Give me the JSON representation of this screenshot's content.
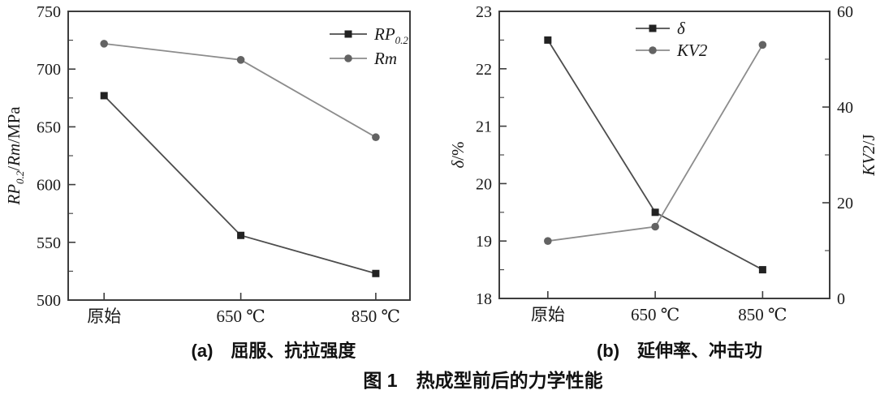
{
  "figure": {
    "caption": "图 1　热成型前后的力学性能",
    "subtitles": {
      "a": "(a)　屈服、抗拉强度",
      "b": "(b)　延伸率、冲击功"
    }
  },
  "colors": {
    "axis": "#3d3d3d",
    "text": "#1a1a1a",
    "series_dark_marker": "#222222",
    "series_dark_line": "#4d4d4d",
    "series_gray_marker": "#636363",
    "series_gray_line": "#8c8c8c"
  },
  "chart_data": [
    {
      "id": "a",
      "type": "line",
      "title": "(a) 屈服、抗拉强度",
      "categories": [
        "原始",
        "650 ℃",
        "850 ℃"
      ],
      "xlabel": "",
      "ylabel": "RP0.2/Rm/MPa",
      "ylabel_parts": [
        {
          "t": "RP",
          "i": true
        },
        {
          "t": "0.2",
          "i": true,
          "sub": true
        },
        {
          "t": "/"
        },
        {
          "t": "Rm",
          "i": true
        },
        {
          "t": "/MPa"
        }
      ],
      "ylim": [
        500,
        750
      ],
      "ytick_step": 50,
      "yminor_step": 25,
      "grid": false,
      "legend_position": "top-right",
      "series": [
        {
          "name": "RP0.2",
          "label_parts": [
            {
              "t": "RP",
              "i": true
            },
            {
              "t": "0.2",
              "i": true,
              "sub": true
            }
          ],
          "marker": "square",
          "marker_color": "#222222",
          "line_color": "#4d4d4d",
          "axis": "left",
          "values": [
            677,
            556,
            523
          ]
        },
        {
          "name": "Rm",
          "label_parts": [
            {
              "t": "Rm",
              "i": true
            }
          ],
          "marker": "circle",
          "marker_color": "#636363",
          "line_color": "#8c8c8c",
          "axis": "left",
          "values": [
            722,
            708,
            641
          ]
        }
      ]
    },
    {
      "id": "b",
      "type": "line",
      "title": "(b) 延伸率、冲击功",
      "categories": [
        "原始",
        "650 ℃",
        "850 ℃"
      ],
      "xlabel": "",
      "ylabel": "δ/%",
      "ylabel_parts": [
        {
          "t": "δ",
          "i": true
        },
        {
          "t": "/%"
        }
      ],
      "ylim": [
        18,
        23
      ],
      "ytick_step": 1,
      "yminor_step": 0.5,
      "y2label": "KV2/J",
      "y2label_parts": [
        {
          "t": "KV2",
          "i": true
        },
        {
          "t": "/J"
        }
      ],
      "y2lim": [
        0,
        60
      ],
      "y2tick_step": 20,
      "y2minor_step": 10,
      "grid": false,
      "legend_position": "top-center",
      "series": [
        {
          "name": "δ",
          "label_parts": [
            {
              "t": "δ",
              "i": true
            }
          ],
          "marker": "square",
          "marker_color": "#222222",
          "line_color": "#4d4d4d",
          "axis": "left",
          "values": [
            22.5,
            19.5,
            18.5
          ]
        },
        {
          "name": "KV2",
          "label_parts": [
            {
              "t": "KV2",
              "i": true
            }
          ],
          "marker": "circle",
          "marker_color": "#636363",
          "line_color": "#8c8c8c",
          "axis": "right",
          "values": [
            12,
            15,
            53
          ]
        }
      ]
    }
  ]
}
